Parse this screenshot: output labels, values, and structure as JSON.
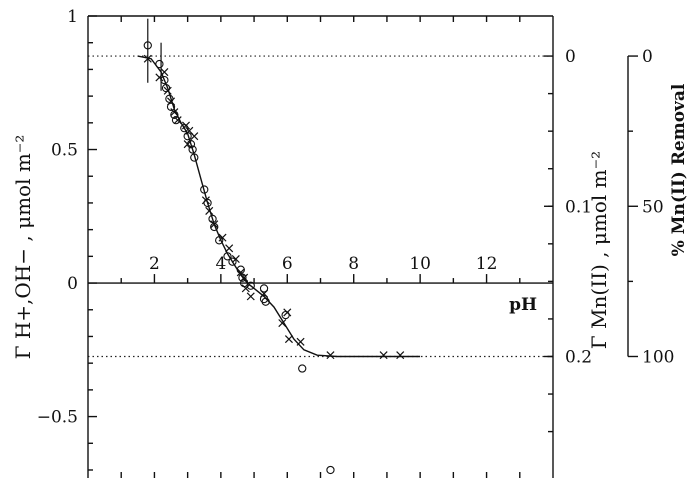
{
  "chart_data": {
    "type": "scatter",
    "title": "",
    "xlabel": "pH",
    "ylabel_left": "Γ H+,OH− , μmol m⁻²",
    "ylabel_right": "Γ Mn(II) , μmol m⁻²",
    "ylabel_far_right": "% Mn(II) Removal",
    "xlim": [
      0,
      14
    ],
    "ylim": [
      -0.73,
      1.0
    ],
    "x_ticks": [
      2,
      4,
      6,
      8,
      10,
      12
    ],
    "x_tick_labels": [
      "2",
      "4",
      "6",
      "8",
      "10",
      "12"
    ],
    "y_ticks": [
      -0.5,
      0,
      0.5,
      1
    ],
    "y_tick_labels": [
      "−0.5",
      "0",
      "0.5",
      "1"
    ],
    "right_axis": {
      "ticks": [
        0,
        0.1,
        0.2
      ],
      "tick_labels": [
        "0",
        "0.1",
        "0.2"
      ],
      "gamma_at_zero_left": 0.85,
      "gamma_per_unit": -5.625
    },
    "far_right_axis": {
      "ticks": [
        0,
        50,
        100
      ],
      "tick_labels": [
        "0",
        "50",
        "100"
      ]
    },
    "reference_lines": [
      {
        "y": 0.85,
        "style": "dotted"
      },
      {
        "y": -0.275,
        "style": "dotted"
      }
    ],
    "series": [
      {
        "marker": "circle",
        "points": [
          [
            1.8,
            0.89
          ],
          [
            2.15,
            0.82
          ],
          [
            2.3,
            0.76
          ],
          [
            2.35,
            0.73
          ],
          [
            2.45,
            0.69
          ],
          [
            2.5,
            0.66
          ],
          [
            2.6,
            0.63
          ],
          [
            2.65,
            0.61
          ],
          [
            2.9,
            0.58
          ],
          [
            3.0,
            0.55
          ],
          [
            3.1,
            0.52
          ],
          [
            3.15,
            0.5
          ],
          [
            3.2,
            0.47
          ],
          [
            3.5,
            0.35
          ],
          [
            3.6,
            0.3
          ],
          [
            3.75,
            0.24
          ],
          [
            3.8,
            0.21
          ],
          [
            3.95,
            0.16
          ],
          [
            4.2,
            0.1
          ],
          [
            4.35,
            0.08
          ],
          [
            4.6,
            0.05
          ],
          [
            4.65,
            0.02
          ],
          [
            4.7,
            0.0
          ],
          [
            4.9,
            -0.01
          ],
          [
            5.3,
            -0.02
          ],
          [
            5.3,
            -0.06
          ],
          [
            5.35,
            -0.07
          ],
          [
            5.95,
            -0.12
          ],
          [
            6.45,
            -0.32
          ],
          [
            7.3,
            -0.7
          ]
        ]
      },
      {
        "marker": "cross",
        "points": [
          [
            1.8,
            0.84
          ],
          [
            2.15,
            0.77
          ],
          [
            2.3,
            0.79
          ],
          [
            2.4,
            0.72
          ],
          [
            2.5,
            0.68
          ],
          [
            2.6,
            0.64
          ],
          [
            2.7,
            0.61
          ],
          [
            2.95,
            0.59
          ],
          [
            3.05,
            0.57
          ],
          [
            3.2,
            0.55
          ],
          [
            3.0,
            0.52
          ],
          [
            3.55,
            0.31
          ],
          [
            3.65,
            0.27
          ],
          [
            3.8,
            0.22
          ],
          [
            4.05,
            0.17
          ],
          [
            4.25,
            0.13
          ],
          [
            4.45,
            0.09
          ],
          [
            4.6,
            0.04
          ],
          [
            4.7,
            0.02
          ],
          [
            4.75,
            -0.02
          ],
          [
            4.9,
            -0.05
          ],
          [
            5.3,
            -0.04
          ],
          [
            5.85,
            -0.15
          ],
          [
            6.0,
            -0.11
          ],
          [
            6.05,
            -0.21
          ],
          [
            6.4,
            -0.22
          ],
          [
            7.3,
            -0.27
          ],
          [
            8.9,
            -0.27
          ],
          [
            9.4,
            -0.27
          ]
        ]
      }
    ],
    "fit_line": [
      [
        1.5,
        0.85
      ],
      [
        1.9,
        0.84
      ],
      [
        2.2,
        0.79
      ],
      [
        2.4,
        0.73
      ],
      [
        2.6,
        0.65
      ],
      [
        2.8,
        0.6
      ],
      [
        3.0,
        0.56
      ],
      [
        3.2,
        0.48
      ],
      [
        3.4,
        0.39
      ],
      [
        3.6,
        0.3
      ],
      [
        3.8,
        0.22
      ],
      [
        4.0,
        0.16
      ],
      [
        4.2,
        0.11
      ],
      [
        4.4,
        0.07
      ],
      [
        4.6,
        0.03
      ],
      [
        4.8,
        0.0
      ],
      [
        5.0,
        -0.02
      ],
      [
        5.3,
        -0.05
      ],
      [
        5.6,
        -0.09
      ],
      [
        5.9,
        -0.15
      ],
      [
        6.2,
        -0.21
      ],
      [
        6.5,
        -0.25
      ],
      [
        6.9,
        -0.27
      ],
      [
        7.5,
        -0.275
      ],
      [
        10.0,
        -0.275
      ]
    ]
  }
}
